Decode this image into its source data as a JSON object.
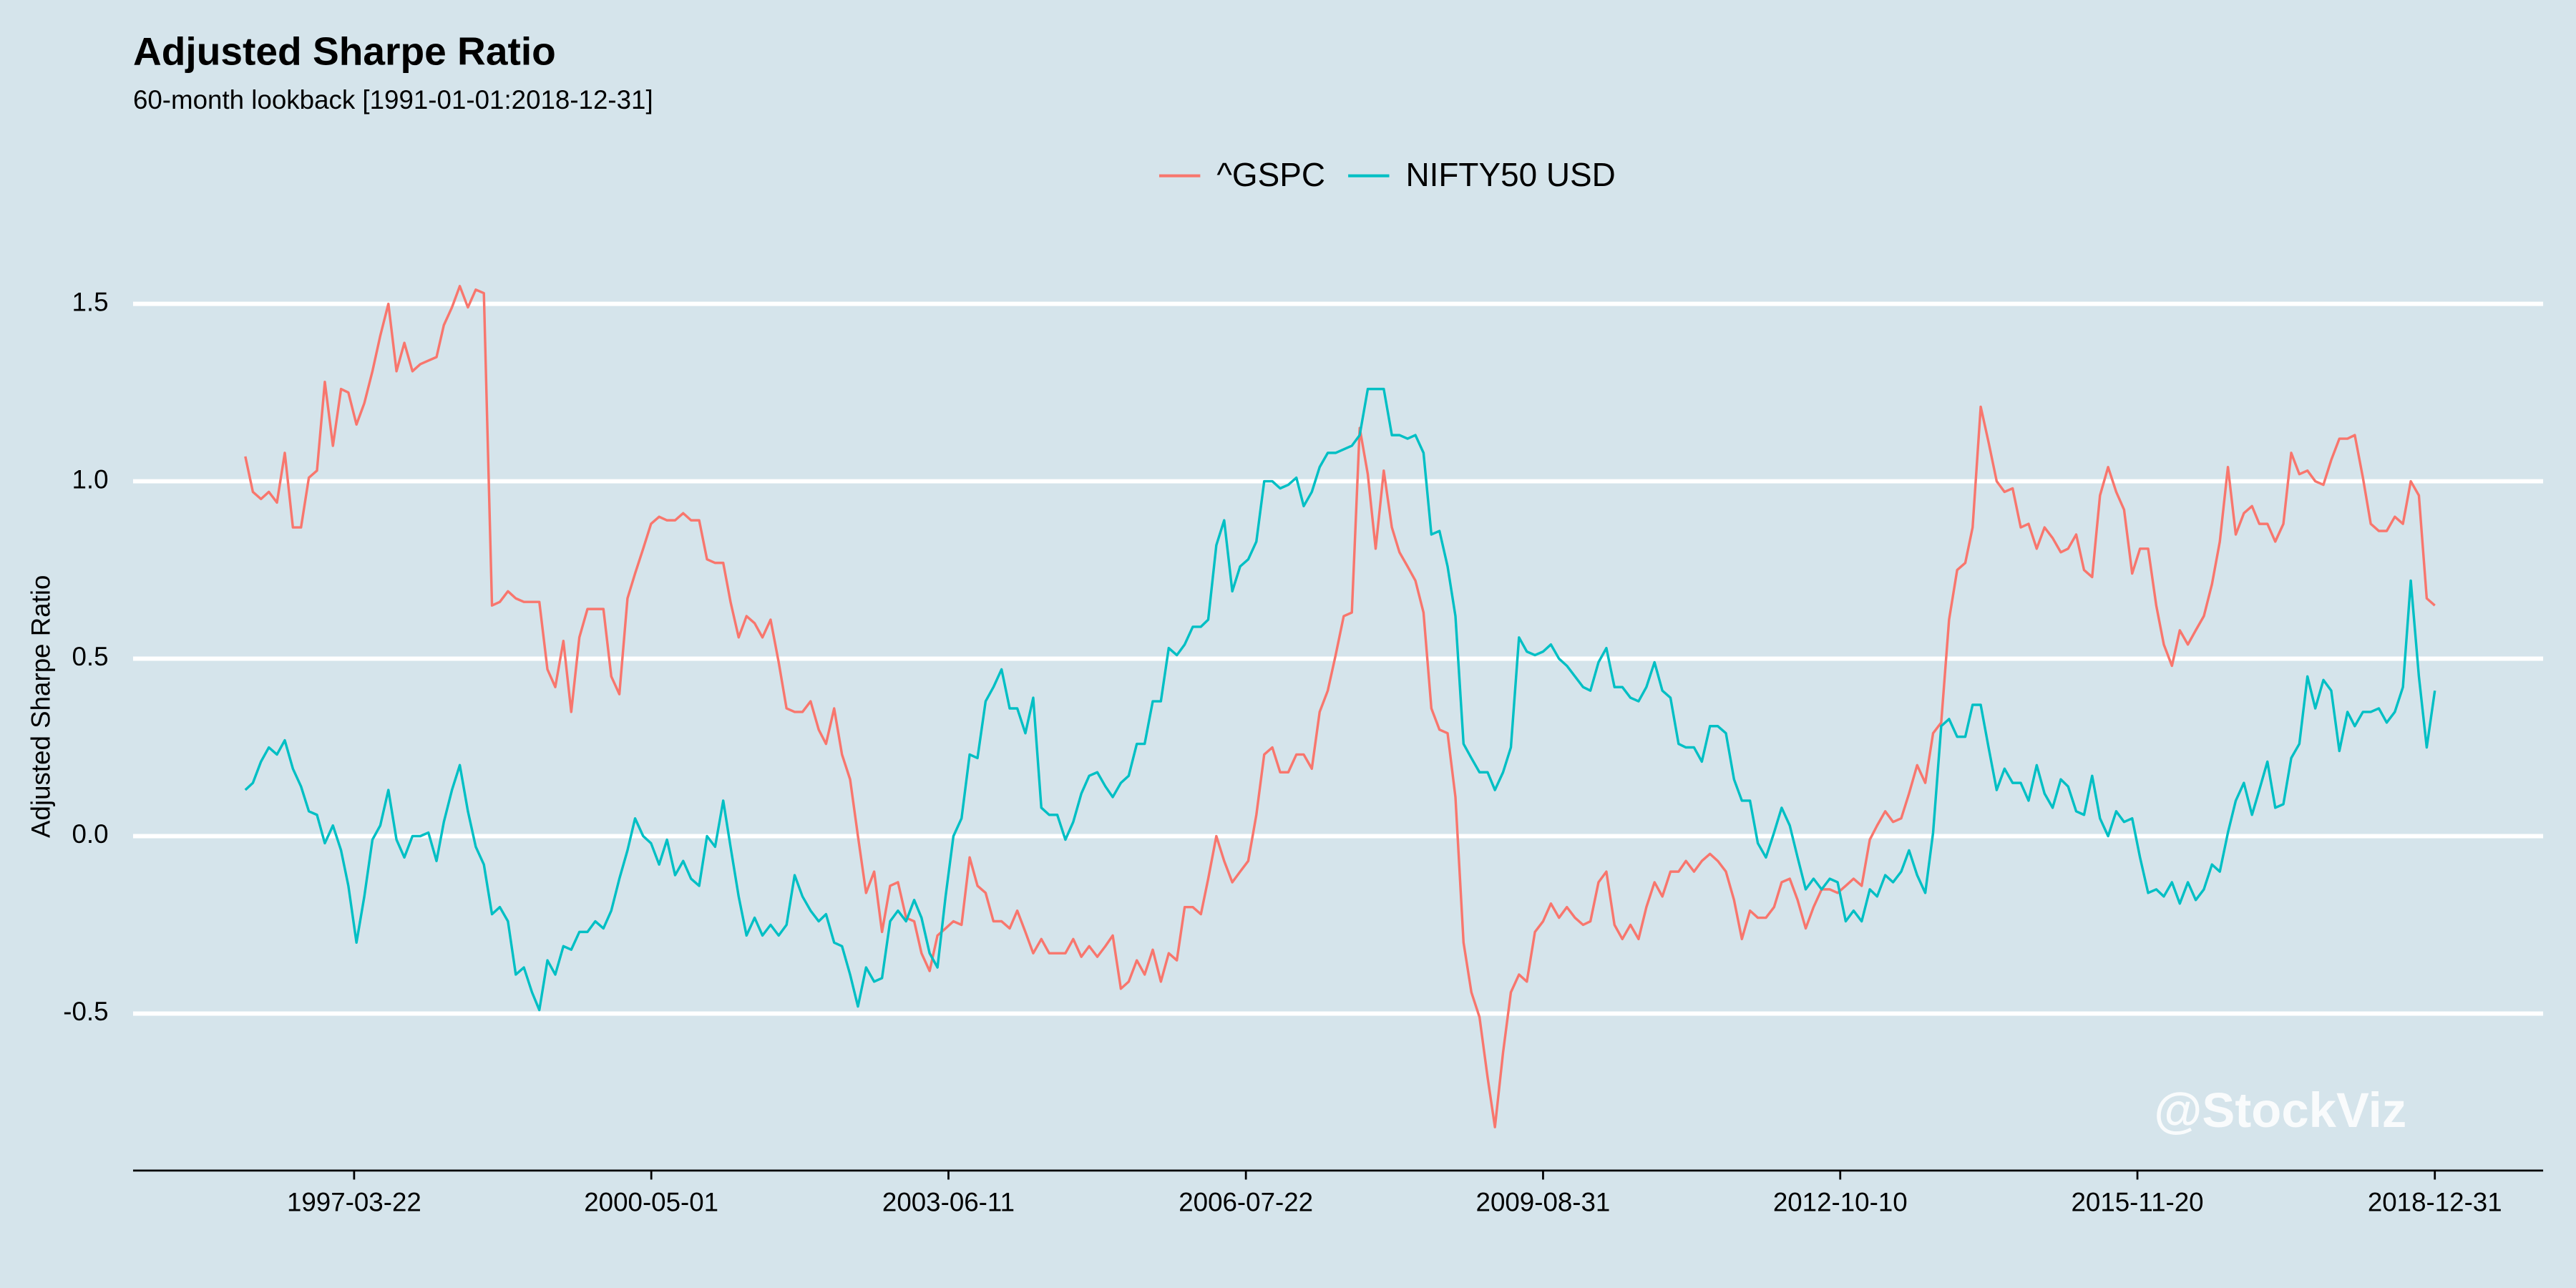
{
  "chart_data": {
    "type": "line",
    "title": "Adjusted Sharpe Ratio",
    "subtitle": "60-month lookback [1991-01-01:2018-12-31]",
    "y_label": "Adjusted Sharpe Ratio",
    "watermark": "@StockViz",
    "legend": "top",
    "grid": true,
    "xlim": [
      "1994-11-28",
      "2020-02-18"
    ],
    "xticks": [
      "1997-03-22",
      "2000-05-01",
      "2003-06-11",
      "2006-07-22",
      "2009-08-31",
      "2012-10-10",
      "2015-11-20",
      "2018-12-31"
    ],
    "ylim": [
      -0.94,
      1.59
    ],
    "yticks": [
      -0.5,
      {
        "value": 0,
        "label": "0.0"
      },
      0.5,
      {
        "value": 1,
        "label": "1.0"
      },
      1.5
    ],
    "x": [
      "1996-01-31",
      "1996-02-29",
      "1996-03-31",
      "1996-04-30",
      "1996-05-31",
      "1996-06-30",
      "1996-07-31",
      "1996-08-31",
      "1996-09-30",
      "1996-10-31",
      "1996-11-30",
      "1996-12-31",
      "1997-01-31",
      "1997-02-28",
      "1997-03-31",
      "1997-04-30",
      "1997-05-31",
      "1997-06-30",
      "1997-07-31",
      "1997-08-31",
      "1997-09-30",
      "1997-10-31",
      "1997-11-30",
      "1997-12-31",
      "1998-01-31",
      "1998-02-28",
      "1998-03-31",
      "1998-04-30",
      "1998-05-31",
      "1998-06-30",
      "1998-07-31",
      "1998-08-31",
      "1998-09-30",
      "1998-10-31",
      "1998-11-30",
      "1998-12-31",
      "1999-01-31",
      "1999-02-28",
      "1999-03-31",
      "1999-04-30",
      "1999-05-31",
      "1999-06-30",
      "1999-07-31",
      "1999-08-31",
      "1999-09-30",
      "1999-10-31",
      "1999-11-30",
      "1999-12-31",
      "2000-01-31",
      "2000-02-29",
      "2000-03-31",
      "2000-04-30",
      "2000-05-31",
      "2000-06-30",
      "2000-07-31",
      "2000-08-31",
      "2000-09-30",
      "2000-10-31",
      "2000-11-30",
      "2000-12-31",
      "2001-01-31",
      "2001-02-28",
      "2001-03-31",
      "2001-04-30",
      "2001-05-31",
      "2001-06-30",
      "2001-07-31",
      "2001-08-31",
      "2001-09-30",
      "2001-10-31",
      "2001-11-30",
      "2001-12-31",
      "2002-01-31",
      "2002-02-28",
      "2002-03-31",
      "2002-04-30",
      "2002-05-31",
      "2002-06-30",
      "2002-07-31",
      "2002-08-31",
      "2002-09-30",
      "2002-10-31",
      "2002-11-30",
      "2002-12-31",
      "2003-01-31",
      "2003-02-28",
      "2003-03-31",
      "2003-04-30",
      "2003-05-31",
      "2003-06-30",
      "2003-07-31",
      "2003-08-31",
      "2003-09-30",
      "2003-10-31",
      "2003-11-30",
      "2003-12-31",
      "2004-01-31",
      "2004-02-29",
      "2004-03-31",
      "2004-04-30",
      "2004-05-31",
      "2004-06-30",
      "2004-07-31",
      "2004-08-31",
      "2004-09-30",
      "2004-10-31",
      "2004-11-30",
      "2004-12-31",
      "2005-01-31",
      "2005-02-28",
      "2005-03-31",
      "2005-04-30",
      "2005-05-31",
      "2005-06-30",
      "2005-07-31",
      "2005-08-31",
      "2005-09-30",
      "2005-10-31",
      "2005-11-30",
      "2005-12-31",
      "2006-01-31",
      "2006-02-28",
      "2006-03-31",
      "2006-04-30",
      "2006-05-31",
      "2006-06-30",
      "2006-07-31",
      "2006-08-31",
      "2006-09-30",
      "2006-10-31",
      "2006-11-30",
      "2006-12-31",
      "2007-01-31",
      "2007-02-28",
      "2007-03-31",
      "2007-04-30",
      "2007-05-31",
      "2007-06-30",
      "2007-07-31",
      "2007-08-31",
      "2007-09-30",
      "2007-10-31",
      "2007-11-30",
      "2007-12-31",
      "2008-01-31",
      "2008-02-29",
      "2008-03-31",
      "2008-04-30",
      "2008-05-31",
      "2008-06-30",
      "2008-07-31",
      "2008-08-31",
      "2008-09-30",
      "2008-10-31",
      "2008-11-30",
      "2008-12-31",
      "2009-01-31",
      "2009-02-28",
      "2009-03-31",
      "2009-04-30",
      "2009-05-31",
      "2009-06-30",
      "2009-07-31",
      "2009-08-31",
      "2009-09-30",
      "2009-10-31",
      "2009-11-30",
      "2009-12-31",
      "2010-01-31",
      "2010-02-28",
      "2010-03-31",
      "2010-04-30",
      "2010-05-31",
      "2010-06-30",
      "2010-07-31",
      "2010-08-31",
      "2010-09-30",
      "2010-10-31",
      "2010-11-30",
      "2010-12-31",
      "2011-01-31",
      "2011-02-28",
      "2011-03-31",
      "2011-04-30",
      "2011-05-31",
      "2011-06-30",
      "2011-07-31",
      "2011-08-31",
      "2011-09-30",
      "2011-10-31",
      "2011-11-30",
      "2011-12-31",
      "2012-01-31",
      "2012-02-29",
      "2012-03-31",
      "2012-04-30",
      "2012-05-31",
      "2012-06-30",
      "2012-07-31",
      "2012-08-31",
      "2012-09-30",
      "2012-10-31",
      "2012-11-30",
      "2012-12-31",
      "2013-01-31",
      "2013-02-28",
      "2013-03-31",
      "2013-04-30",
      "2013-05-31",
      "2013-06-30",
      "2013-07-31",
      "2013-08-31",
      "2013-09-30",
      "2013-10-31",
      "2013-11-30",
      "2013-12-31",
      "2014-01-31",
      "2014-02-28",
      "2014-03-31",
      "2014-04-30",
      "2014-05-31",
      "2014-06-30",
      "2014-07-31",
      "2014-08-31",
      "2014-09-30",
      "2014-10-31",
      "2014-11-30",
      "2014-12-31",
      "2015-01-31",
      "2015-02-28",
      "2015-03-31",
      "2015-04-30",
      "2015-05-31",
      "2015-06-30",
      "2015-07-31",
      "2015-08-31",
      "2015-09-30",
      "2015-10-31",
      "2015-11-30",
      "2015-12-31",
      "2016-01-31",
      "2016-02-29",
      "2016-03-31",
      "2016-04-30",
      "2016-05-31",
      "2016-06-30",
      "2016-07-31",
      "2016-08-31",
      "2016-09-30",
      "2016-10-31",
      "2016-11-30",
      "2016-12-31",
      "2017-01-31",
      "2017-02-28",
      "2017-03-31",
      "2017-04-30",
      "2017-05-31",
      "2017-06-30",
      "2017-07-31",
      "2017-08-31",
      "2017-09-30",
      "2017-10-31",
      "2017-11-30",
      "2017-12-31",
      "2018-01-31",
      "2018-02-28",
      "2018-03-31",
      "2018-04-30",
      "2018-05-31",
      "2018-06-30",
      "2018-07-31",
      "2018-08-31",
      "2018-09-30",
      "2018-10-31",
      "2018-11-30",
      "2018-12-31"
    ],
    "series": [
      {
        "name": "^GSPC",
        "color": "#f8766d",
        "values": [
          1.07,
          0.97,
          0.95,
          0.97,
          0.94,
          1.08,
          0.87,
          0.87,
          1.01,
          1.03,
          1.28,
          1.1,
          1.26,
          1.25,
          1.16,
          1.22,
          1.31,
          1.41,
          1.5,
          1.31,
          1.39,
          1.31,
          1.33,
          1.34,
          1.35,
          1.44,
          1.49,
          1.55,
          1.49,
          1.54,
          1.53,
          0.65,
          0.66,
          0.69,
          0.67,
          0.66,
          0.66,
          0.66,
          0.47,
          0.42,
          0.55,
          0.35,
          0.56,
          0.64,
          0.64,
          0.64,
          0.45,
          0.4,
          0.67,
          0.74,
          0.81,
          0.88,
          0.9,
          0.89,
          0.89,
          0.91,
          0.89,
          0.89,
          0.78,
          0.77,
          0.77,
          0.66,
          0.56,
          0.62,
          0.6,
          0.56,
          0.61,
          0.49,
          0.36,
          0.35,
          0.35,
          0.38,
          0.3,
          0.26,
          0.36,
          0.23,
          0.16,
          0,
          -0.16,
          -0.1,
          -0.27,
          -0.14,
          -0.13,
          -0.23,
          -0.24,
          -0.33,
          -0.38,
          -0.28,
          -0.26,
          -0.24,
          -0.25,
          -0.06,
          -0.14,
          -0.16,
          -0.24,
          -0.24,
          -0.26,
          -0.21,
          -0.27,
          -0.33,
          -0.29,
          -0.33,
          -0.33,
          -0.33,
          -0.29,
          -0.34,
          -0.31,
          -0.34,
          -0.31,
          -0.28,
          -0.43,
          -0.41,
          -0.35,
          -0.39,
          -0.32,
          -0.41,
          -0.33,
          -0.35,
          -0.2,
          -0.2,
          -0.22,
          -0.12,
          0,
          -0.07,
          -0.13,
          -0.1,
          -0.07,
          0.06,
          0.23,
          0.25,
          0.18,
          0.18,
          0.23,
          0.23,
          0.19,
          0.35,
          0.41,
          0.51,
          0.62,
          0.63,
          1.15,
          1.02,
          0.81,
          1.03,
          0.87,
          0.8,
          0.76,
          0.72,
          0.63,
          0.36,
          0.3,
          0.29,
          0.11,
          -0.3,
          -0.44,
          -0.51,
          -0.68,
          -0.82,
          -0.61,
          -0.44,
          -0.39,
          -0.41,
          -0.27,
          -0.24,
          -0.19,
          -0.23,
          -0.2,
          -0.23,
          -0.25,
          -0.24,
          -0.13,
          -0.1,
          -0.25,
          -0.29,
          -0.25,
          -0.29,
          -0.2,
          -0.13,
          -0.17,
          -0.1,
          -0.1,
          -0.07,
          -0.1,
          -0.07,
          -0.05,
          -0.07,
          -0.1,
          -0.18,
          -0.29,
          -0.21,
          -0.23,
          -0.23,
          -0.2,
          -0.13,
          -0.12,
          -0.18,
          -0.26,
          -0.2,
          -0.15,
          -0.15,
          -0.16,
          -0.14,
          -0.12,
          -0.14,
          -0.01,
          0.03,
          0.07,
          0.04,
          0.05,
          0.12,
          0.2,
          0.15,
          0.29,
          0.32,
          0.61,
          0.75,
          0.77,
          0.87,
          1.21,
          1.11,
          1.0,
          0.97,
          0.98,
          0.87,
          0.88,
          0.81,
          0.87,
          0.84,
          0.8,
          0.81,
          0.85,
          0.75,
          0.73,
          0.96,
          1.04,
          0.97,
          0.92,
          0.74,
          0.81,
          0.81,
          0.65,
          0.54,
          0.48,
          0.58,
          0.54,
          0.58,
          0.62,
          0.71,
          0.83,
          1.04,
          0.85,
          0.91,
          0.93,
          0.88,
          0.88,
          0.83,
          0.88,
          1.08,
          1.02,
          1.03,
          1.0,
          0.99,
          1.06,
          1.12,
          1.12,
          1.13,
          1.01,
          0.88,
          0.86,
          0.86,
          0.9,
          0.88,
          1.0,
          0.96,
          0.67,
          0.65
        ]
      },
      {
        "name": "NIFTY50 USD",
        "color": "#00bfc4",
        "values": [
          0.13,
          0.15,
          0.21,
          0.25,
          0.23,
          0.27,
          0.19,
          0.14,
          0.07,
          0.06,
          -0.02,
          0.03,
          -0.04,
          -0.14,
          -0.3,
          -0.17,
          -0.01,
          0.03,
          0.13,
          -0.01,
          -0.06,
          0,
          0,
          0.01,
          -0.07,
          0.04,
          0.13,
          0.2,
          0.07,
          -0.03,
          -0.08,
          -0.22,
          -0.2,
          -0.24,
          -0.39,
          -0.37,
          -0.44,
          -0.49,
          -0.35,
          -0.39,
          -0.31,
          -0.32,
          -0.27,
          -0.27,
          -0.24,
          -0.26,
          -0.21,
          -0.12,
          -0.04,
          0.05,
          0,
          -0.02,
          -0.08,
          -0.01,
          -0.11,
          -0.07,
          -0.12,
          -0.14,
          0,
          -0.03,
          0.1,
          -0.03,
          -0.17,
          -0.28,
          -0.23,
          -0.28,
          -0.25,
          -0.28,
          -0.25,
          -0.11,
          -0.17,
          -0.21,
          -0.24,
          -0.22,
          -0.3,
          -0.31,
          -0.39,
          -0.48,
          -0.37,
          -0.41,
          -0.4,
          -0.24,
          -0.21,
          -0.24,
          -0.18,
          -0.23,
          -0.33,
          -0.37,
          -0.17,
          0,
          0.05,
          0.23,
          0.22,
          0.38,
          0.42,
          0.47,
          0.36,
          0.36,
          0.29,
          0.39,
          0.08,
          0.06,
          0.06,
          -0.01,
          0.04,
          0.12,
          0.17,
          0.18,
          0.14,
          0.11,
          0.15,
          0.17,
          0.26,
          0.26,
          0.38,
          0.38,
          0.53,
          0.51,
          0.54,
          0.59,
          0.59,
          0.61,
          0.82,
          0.89,
          0.69,
          0.76,
          0.78,
          0.83,
          1.0,
          1.0,
          0.98,
          0.99,
          1.01,
          0.93,
          0.97,
          1.04,
          1.08,
          1.08,
          1.09,
          1.1,
          1.13,
          1.26,
          1.26,
          1.26,
          1.13,
          1.13,
          1.12,
          1.13,
          1.08,
          0.85,
          0.86,
          0.76,
          0.62,
          0.26,
          0.22,
          0.18,
          0.18,
          0.13,
          0.18,
          0.25,
          0.56,
          0.52,
          0.51,
          0.52,
          0.54,
          0.5,
          0.48,
          0.45,
          0.42,
          0.41,
          0.49,
          0.53,
          0.42,
          0.42,
          0.39,
          0.38,
          0.42,
          0.49,
          0.41,
          0.39,
          0.26,
          0.25,
          0.25,
          0.21,
          0.31,
          0.31,
          0.29,
          0.16,
          0.1,
          0.1,
          -0.02,
          -0.06,
          0.01,
          0.08,
          0.03,
          -0.06,
          -0.15,
          -0.12,
          -0.15,
          -0.12,
          -0.13,
          -0.24,
          -0.21,
          -0.24,
          -0.15,
          -0.17,
          -0.11,
          -0.13,
          -0.1,
          -0.04,
          -0.11,
          -0.16,
          0.01,
          0.31,
          0.33,
          0.28,
          0.28,
          0.37,
          0.37,
          0.25,
          0.13,
          0.19,
          0.15,
          0.15,
          0.1,
          0.2,
          0.12,
          0.08,
          0.16,
          0.14,
          0.07,
          0.06,
          0.17,
          0.05,
          0,
          0.07,
          0.04,
          0.05,
          -0.06,
          -0.16,
          -0.15,
          -0.17,
          -0.13,
          -0.19,
          -0.13,
          -0.18,
          -0.15,
          -0.08,
          -0.1,
          0.01,
          0.1,
          0.15,
          0.06,
          0.13,
          0.21,
          0.08,
          0.09,
          0.22,
          0.26,
          0.45,
          0.36,
          0.44,
          0.41,
          0.24,
          0.35,
          0.31,
          0.35,
          0.35,
          0.36,
          0.32,
          0.35,
          0.42,
          0.72,
          0.45,
          0.25,
          0.41
        ]
      }
    ]
  }
}
